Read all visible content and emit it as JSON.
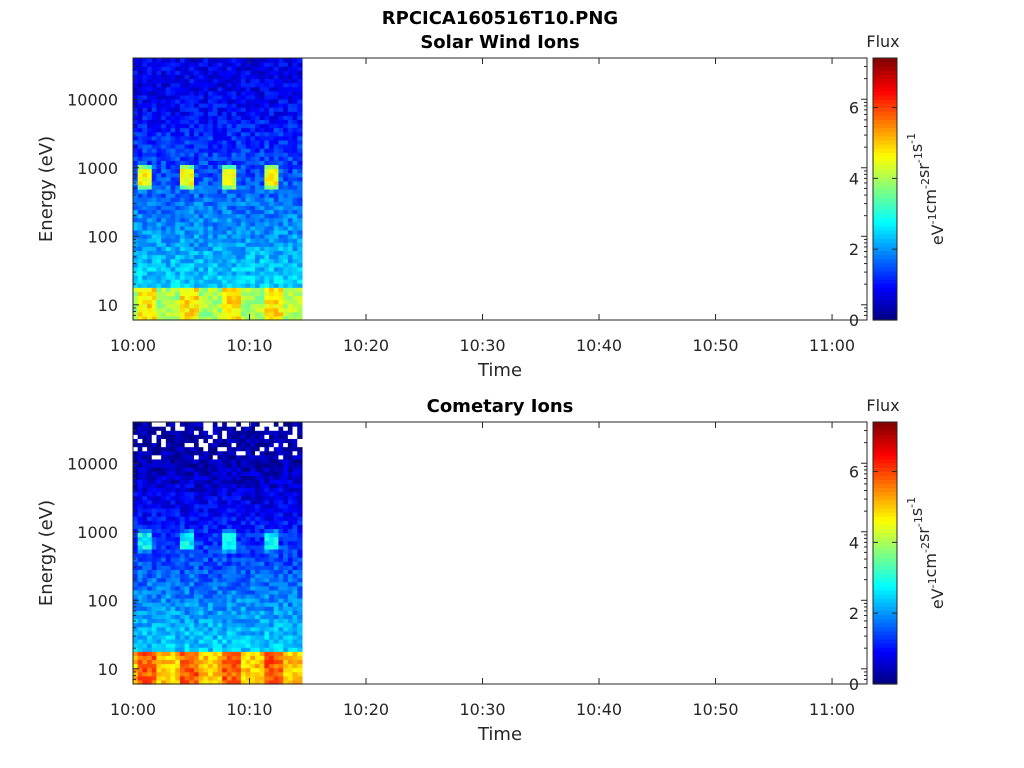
{
  "figure_title": "RPCICA160516T10.PNG",
  "colorbar": {
    "title": "Flux",
    "label_base": "eV",
    "label_parts": [
      {
        "t": "eV",
        "sup": "-1"
      },
      {
        "t": "cm",
        "sup": "-2"
      },
      {
        "t": "sr",
        "sup": "-1"
      },
      {
        "t": "s",
        "sup": "-1"
      }
    ],
    "range": [
      0,
      7.4
    ],
    "ticks": [
      "0",
      "2",
      "4",
      "6"
    ],
    "tick_values": [
      0,
      2,
      4,
      6
    ],
    "colormap": "jet"
  },
  "chart_data": [
    {
      "type": "heatmap",
      "title": "Solar Wind Ions",
      "xlabel": "Time",
      "ylabel": "Energy (eV)",
      "x_ticks": [
        "10:00",
        "10:10",
        "10:20",
        "10:30",
        "10:40",
        "10:50",
        "11:00"
      ],
      "x_range_minutes": [
        "10:00",
        "11:03"
      ],
      "data_end": "10:14.5",
      "y_scale": "log",
      "y_ticks": [
        "10",
        "100",
        "1000",
        "10000"
      ],
      "y_range": [
        6,
        40000
      ],
      "flux_profile": {
        "low_energy_flux": 4.0,
        "mid_energy_flux": 2.5,
        "high_energy_flux": 0.8,
        "peak_energy_eV": 750,
        "peak_flux": 4.6
      }
    },
    {
      "type": "heatmap",
      "title": "Cometary Ions",
      "xlabel": "Time",
      "ylabel": "Energy (eV)",
      "x_ticks": [
        "10:00",
        "10:10",
        "10:20",
        "10:30",
        "10:40",
        "10:50",
        "11:00"
      ],
      "x_range_minutes": [
        "10:00",
        "11:03"
      ],
      "data_end": "10:14.5",
      "y_scale": "log",
      "y_ticks": [
        "10",
        "100",
        "1000",
        "10000"
      ],
      "y_range": [
        6,
        40000
      ],
      "flux_profile": {
        "low_energy_flux": 5.0,
        "mid_energy_flux": 2.5,
        "high_energy_flux": 0.3,
        "peak_energy_eV": 750,
        "peak_flux": 2.8
      }
    }
  ]
}
